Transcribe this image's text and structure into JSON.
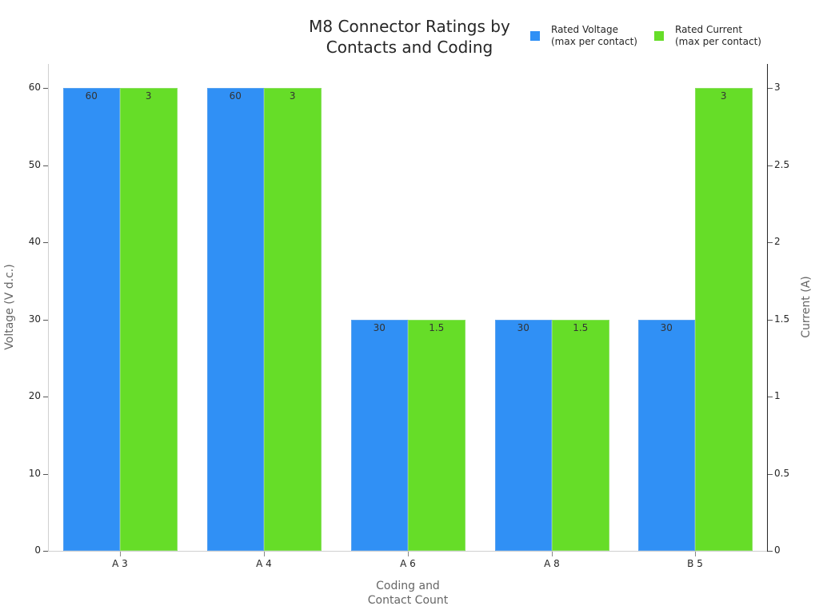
{
  "chart_data": {
    "type": "bar",
    "title": "M8 Connector Ratings by Contacts and Coding",
    "title_lines": [
      "M8 Connector Ratings by",
      "Contacts and Coding"
    ],
    "xlabel": "Coding and Contact Count",
    "xlabel_lines": [
      "Coding and",
      "Contact Count"
    ],
    "ylabel": "Voltage (V d.c.)",
    "y2label": "Current (A)",
    "categories": [
      "A 3",
      "A 4",
      "A 6",
      "A 8",
      "B 5"
    ],
    "series": [
      {
        "name": "Rated Voltage (max per contact)",
        "axis": "left",
        "color": "#3090f5",
        "values": [
          60,
          60,
          30,
          30,
          30
        ],
        "labels": [
          "60",
          "60",
          "30",
          "30",
          "30"
        ]
      },
      {
        "name": "Rated Current (max per contact)",
        "axis": "right",
        "color": "#66dd28",
        "values": [
          3,
          3,
          1.5,
          1.5,
          3
        ],
        "labels": [
          "3",
          "3",
          "1.5",
          "1.5",
          "3"
        ]
      }
    ],
    "ylim": [
      0,
      60
    ],
    "y2lim": [
      0,
      3
    ],
    "yticks": [
      "0",
      "10",
      "20",
      "30",
      "40",
      "50",
      "60"
    ],
    "y2ticks": [
      "0",
      "0.5",
      "1",
      "1.5",
      "2",
      "2.5",
      "3"
    ],
    "grid": false,
    "legend_position": "top-right"
  },
  "legend": {
    "voltage": [
      "Rated Voltage",
      "(max per contact)"
    ],
    "current": [
      "Rated Current",
      "(max per contact)"
    ]
  }
}
